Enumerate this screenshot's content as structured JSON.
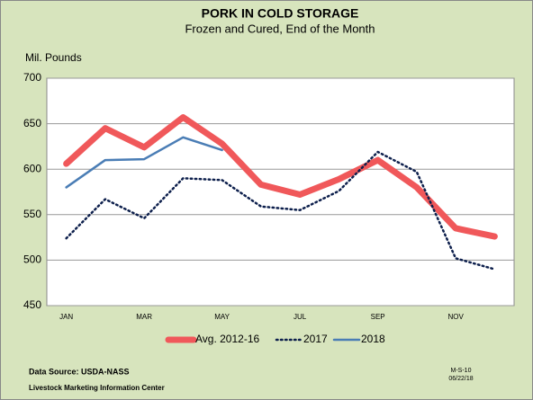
{
  "chart_data": {
    "type": "line",
    "title": "PORK IN COLD STORAGE",
    "subtitle": "Frozen and Cured, End of the Month",
    "y_label": "Mil. Pounds",
    "categories": [
      "JAN",
      null,
      "MAR",
      null,
      "MAY",
      null,
      "JUL",
      null,
      "SEP",
      null,
      "NOV",
      null
    ],
    "series": [
      {
        "name": "Avg. 2012-16",
        "color": "#f0585a",
        "style": "solid",
        "line_width": 7,
        "values": [
          606,
          645,
          624,
          657,
          628,
          583,
          572,
          589,
          610,
          580,
          535,
          526
        ]
      },
      {
        "name": "2017",
        "color": "#0d1f4c",
        "style": "dotted",
        "line_width": 2.5,
        "values": [
          524,
          567,
          546,
          590,
          588,
          559,
          555,
          576,
          619,
          597,
          502,
          490
        ]
      },
      {
        "name": "2018",
        "color": "#4a7db5",
        "style": "solid",
        "line_width": 2.5,
        "values": [
          580,
          610,
          611,
          635,
          621,
          null,
          null,
          null,
          null,
          null,
          null,
          null
        ]
      }
    ],
    "ylim": [
      450,
      700
    ],
    "yticks": [
      450,
      500,
      550,
      600,
      650,
      700
    ],
    "grid": true,
    "legend": "bottom",
    "source": "Data Source:  USDA-NASS",
    "organization": "Livestock Marketing Information Center",
    "code": "M-S-10",
    "date": "06/22/18"
  }
}
